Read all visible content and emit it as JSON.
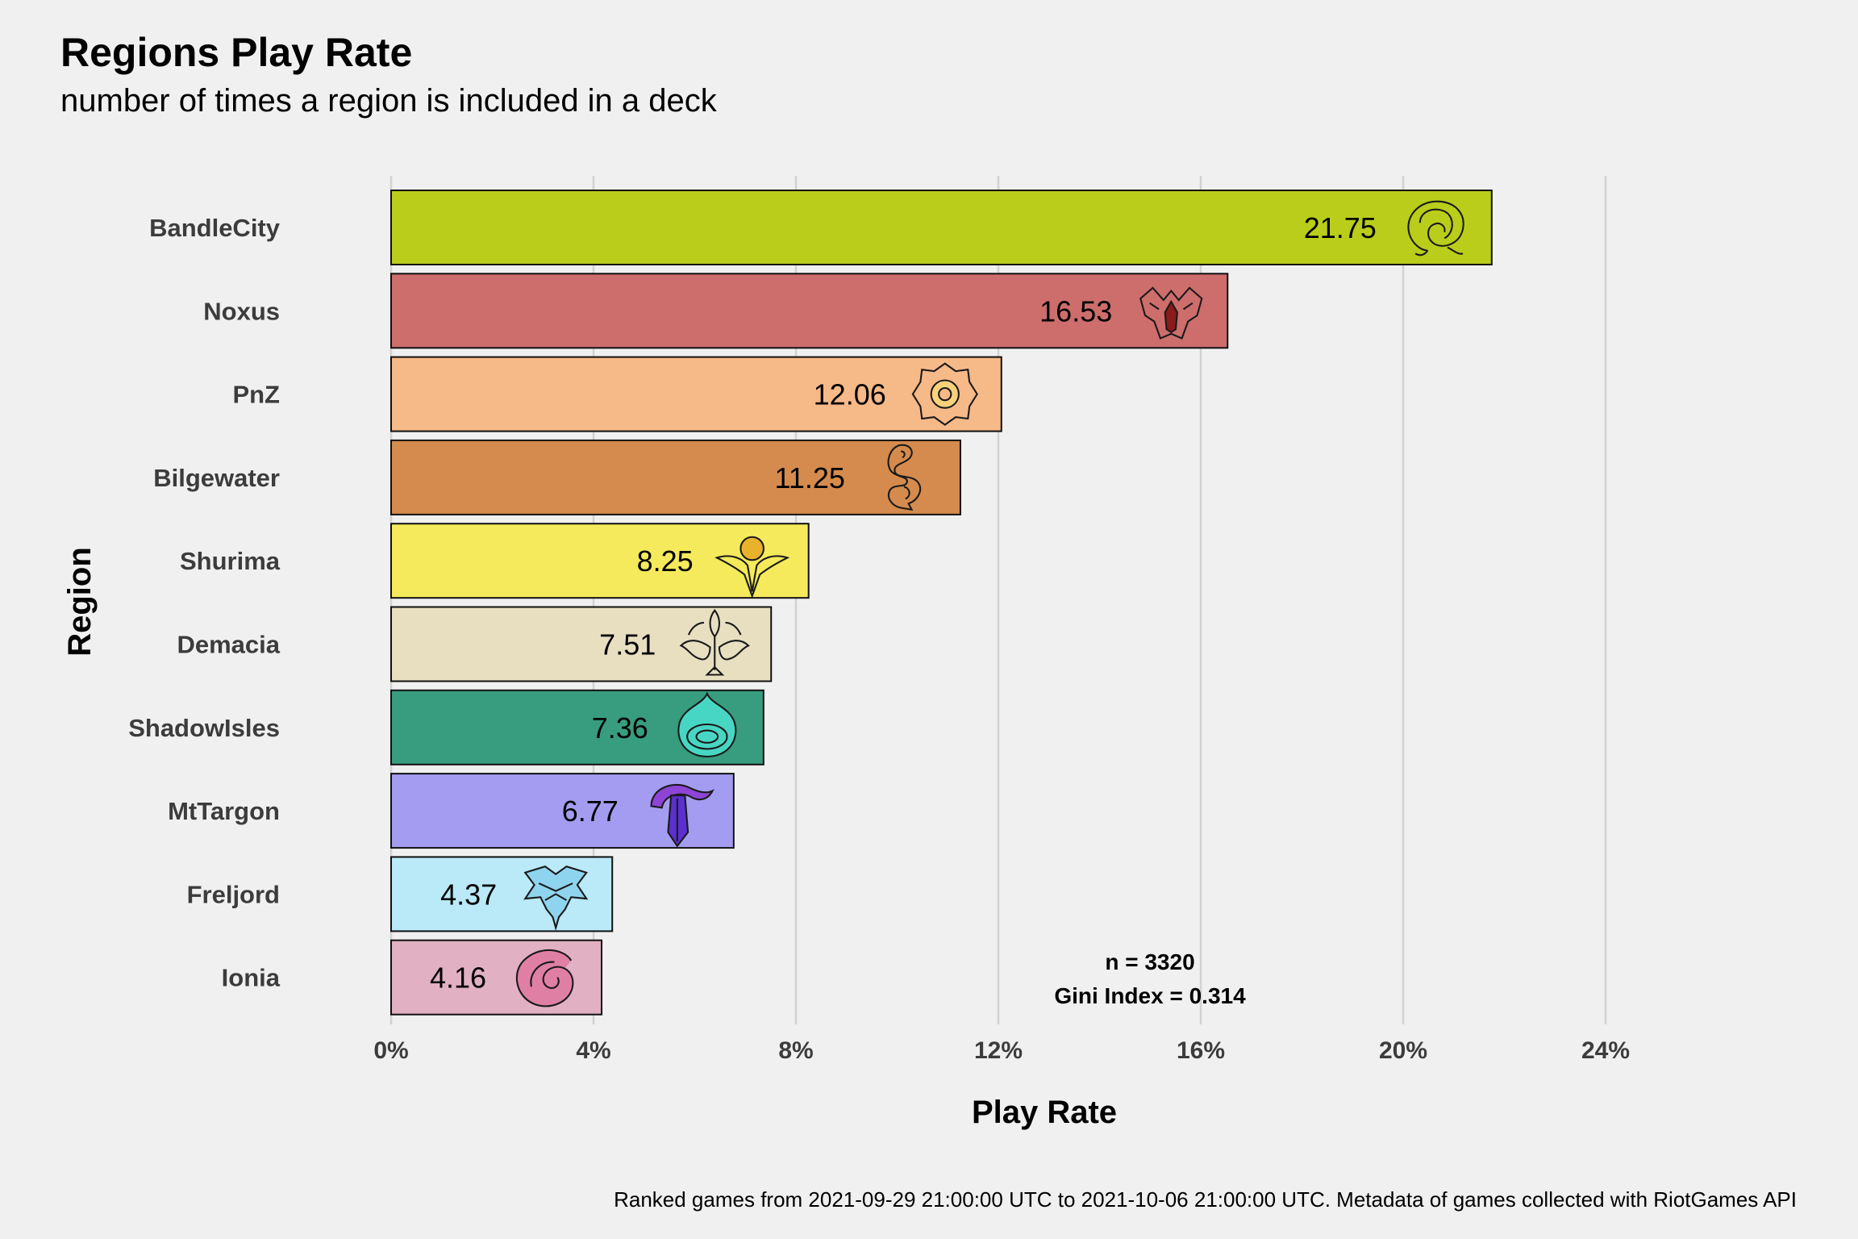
{
  "chart_data": {
    "type": "bar",
    "orientation": "horizontal",
    "title": "Regions Play Rate",
    "subtitle": "number of times a region is included in a deck",
    "xlabel": "Play Rate",
    "ylabel": "Region",
    "xlim": [
      0,
      24
    ],
    "xticks": [
      "0%",
      "4%",
      "8%",
      "12%",
      "16%",
      "20%",
      "24%"
    ],
    "grid": true,
    "legend": "none",
    "categories": [
      "BandleCity",
      "Noxus",
      "PnZ",
      "Bilgewater",
      "Shurima",
      "Demacia",
      "ShadowIsles",
      "MtTargon",
      "Freljord",
      "Ionia"
    ],
    "values": [
      21.75,
      16.53,
      12.06,
      11.25,
      8.25,
      7.51,
      7.36,
      6.77,
      4.37,
      4.16
    ],
    "value_labels": [
      "21.75",
      "16.53",
      "12.06",
      "11.25",
      "8.25",
      "7.51",
      "7.36",
      "6.77",
      "4.37",
      "4.16"
    ],
    "colors": [
      "#bacd1b",
      "#cd6e6c",
      "#f6b988",
      "#d48b4d",
      "#f4ea5c",
      "#e8dfc1",
      "#389c7e",
      "#a49cf0",
      "#bae9f8",
      "#e1b0c3"
    ],
    "icons": [
      "bandle-city-icon",
      "noxus-icon",
      "piltover-zaun-icon",
      "bilgewater-icon",
      "shurima-icon",
      "demacia-icon",
      "shadow-isles-icon",
      "mount-targon-icon",
      "freljord-icon",
      "ionia-icon"
    ],
    "annotations": [
      "n = 3320",
      "Gini Index = 0.314"
    ],
    "caption": "Ranked games from 2021-09-29 21:00:00 UTC to 2021-10-06 21:00:00 UTC. Metadata of games collected with RiotGames API"
  }
}
